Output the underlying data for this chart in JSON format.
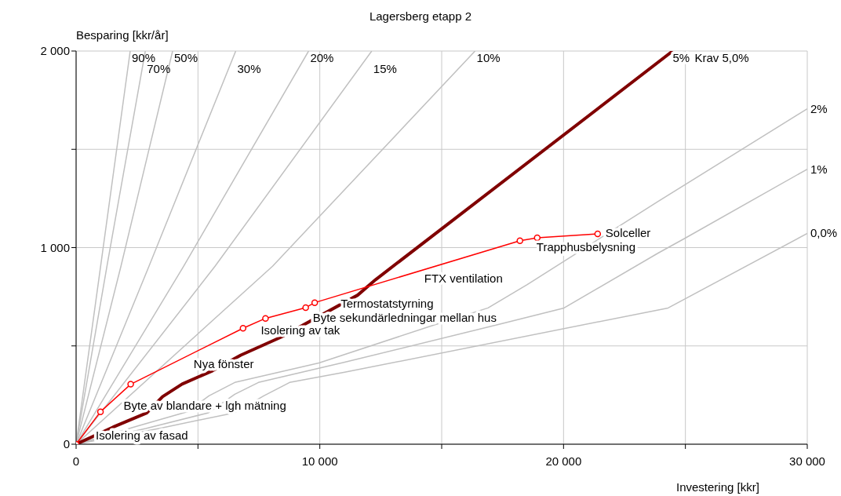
{
  "chart_data": {
    "type": "line",
    "title": "Lagersberg etapp 2",
    "xlabel": "Investering [kkr]",
    "ylabel": "Besparing [kkr/år]",
    "xlim": [
      0,
      30000
    ],
    "ylim": [
      0,
      2000
    ],
    "xticks": [
      0,
      {
        "value": 5000,
        "label": null
      },
      {
        "value": 10000,
        "label": "10 000"
      },
      {
        "value": 15000,
        "label": null
      },
      {
        "value": 20000,
        "label": "20 000"
      },
      {
        "value": 25000,
        "label": null
      },
      {
        "value": 30000,
        "label": "30 000"
      }
    ],
    "yticks": [
      0,
      {
        "value": 500,
        "label": null
      },
      {
        "value": 1000,
        "label": "1 000"
      },
      {
        "value": 1500,
        "label": null
      },
      {
        "value": 2000,
        "label": "2 000"
      }
    ],
    "grid": true,
    "line_style": "solid",
    "series": [
      {
        "name": "90%",
        "color": "#c0c0c0",
        "marker": "none",
        "x": [
          0,
          1000,
          2220
        ],
        "values": [
          0,
          900,
          2000
        ]
      },
      {
        "name": "70%",
        "color": "#c0c0c0",
        "marker": "none",
        "x": [
          0,
          1300,
          2840
        ],
        "values": [
          0,
          930,
          2000
        ]
      },
      {
        "name": "50%",
        "color": "#c0c0c0",
        "marker": "none",
        "x": [
          0,
          1840,
          3960
        ],
        "values": [
          0,
          905,
          2000
        ]
      },
      {
        "name": "30%",
        "color": "#c0c0c0",
        "marker": "none",
        "x": [
          0,
          2990,
          6550
        ],
        "values": [
          0,
          905,
          2000
        ]
      },
      {
        "name": "20%",
        "color": "#c0c0c0",
        "marker": "none",
        "x": [
          0,
          4410,
          9540
        ],
        "values": [
          0,
          905,
          2000
        ]
      },
      {
        "name": "15%",
        "color": "#c0c0c0",
        "marker": "none",
        "x": [
          0,
          5700,
          12130
        ],
        "values": [
          0,
          905,
          2000
        ]
      },
      {
        "name": "10%",
        "color": "#c0c0c0",
        "marker": "none",
        "x": [
          0,
          8060,
          16370
        ],
        "values": [
          0,
          905,
          2000
        ]
      },
      {
        "name": "2%",
        "color": "#c0c0c0",
        "marker": "none",
        "x": [
          0,
          2560,
          4580,
          5450,
          6510,
          9960,
          14650,
          16900,
          18510,
          20440,
          23880,
          30000
        ],
        "values": [
          0,
          94,
          166,
          246,
          314,
          413,
          605,
          693,
          812,
          964,
          1235,
          1706
        ]
      },
      {
        "name": "1%",
        "color": "#c0c0c0",
        "marker": "none",
        "x": [
          0,
          2860,
          5430,
          6510,
          7480,
          11020,
          17450,
          20020,
          23880,
          24930,
          30000
        ],
        "values": [
          0,
          80,
          160,
          254,
          314,
          417,
          613,
          693,
          972,
          1044,
          1399
        ]
      },
      {
        "name": "0,0%",
        "color": "#c0c0c0",
        "marker": "none",
        "x": [
          0,
          3400,
          6500,
          7700,
          8760,
          11020,
          24290,
          30000
        ],
        "values": [
          0,
          80,
          160,
          246,
          314,
          366,
          693,
          1072
        ]
      },
      {
        "name": "Krav 5,0%",
        "color": "#800000",
        "marker": "none",
        "x": [
          0,
          1520,
          2900,
          3550,
          4350,
          5600,
          6760,
          8430,
          11550,
          12290,
          24480
        ],
        "values": [
          0,
          87,
          159,
          242,
          306,
          374,
          453,
          546,
          758,
          837,
          2000
        ]
      },
      {
        "color": "#ff0000",
        "marker": "circle",
        "x": [
          0,
          1000,
          2240,
          6850,
          7770,
          9420,
          9790,
          18210,
          18920,
          21400
        ],
        "values": [
          0,
          165,
          305,
          590,
          640,
          695,
          720,
          1035,
          1050,
          1070
        ]
      }
    ],
    "annotations": [
      {
        "text": "Isolering av fasad",
        "x": 1000,
        "y": 165
      },
      {
        "text": "Byte av blandare + lgh mätning",
        "x": 2240,
        "y": 305
      },
      {
        "text": "Nya fönster",
        "x": 6850,
        "y": 590
      },
      {
        "text": "Isolering av tak",
        "x": 7770,
        "y": 640
      },
      {
        "text": "Byte sekundärledningar mellan hus",
        "x": 9420,
        "y": 695
      },
      {
        "text": "Termostatstyrning",
        "x": 9790,
        "y": 720
      },
      {
        "text": "FTX ventilation",
        "x": 18210,
        "y": 1035
      },
      {
        "text": "Trapphusbelysning",
        "x": 18920,
        "y": 1050
      },
      {
        "text": "Solceller",
        "x": 21400,
        "y": 1070
      },
      {
        "text": "5%",
        "x": 24480,
        "y": 2000
      }
    ]
  }
}
